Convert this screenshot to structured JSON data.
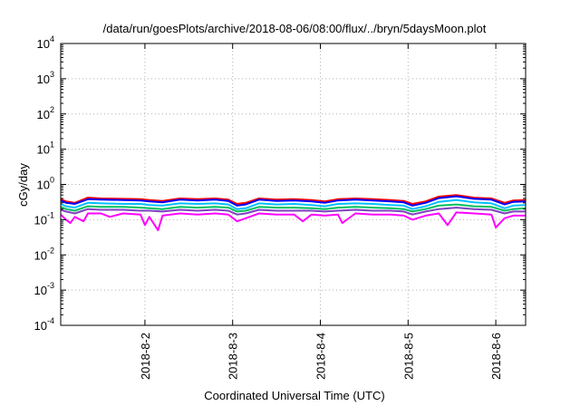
{
  "chart_data": {
    "type": "line",
    "title": "/data/run/goesPlots/archive/2018-08-06/08:00/flux/../bryn/5daysMoon.plot",
    "xlabel": "Coordinated Universal Time (UTC)",
    "ylabel": "cGy/day",
    "yscale": "log",
    "ylim": [
      0.0001,
      10000
    ],
    "xlim_days": [
      1.04,
      6.34
    ],
    "grid": true,
    "legend": "none",
    "y_ticks": [
      {
        "base": "10",
        "exp": "-4",
        "value": 0.0001
      },
      {
        "base": "10",
        "exp": "-3",
        "value": 0.001
      },
      {
        "base": "10",
        "exp": "-2",
        "value": 0.01
      },
      {
        "base": "10",
        "exp": "-1",
        "value": 0.1
      },
      {
        "base": "10",
        "exp": "0",
        "value": 1
      },
      {
        "base": "10",
        "exp": "1",
        "value": 10
      },
      {
        "base": "10",
        "exp": "2",
        "value": 100
      },
      {
        "base": "10",
        "exp": "3",
        "value": 1000
      },
      {
        "base": "10",
        "exp": "4",
        "value": 10000
      }
    ],
    "x_ticks": [
      {
        "label": "2018-8-2",
        "day": 2
      },
      {
        "label": "2018-8-3",
        "day": 3
      },
      {
        "label": "2018-8-4",
        "day": 4
      },
      {
        "label": "2018-8-5",
        "day": 5
      },
      {
        "label": "2018-8-6",
        "day": 6
      }
    ],
    "series": [
      {
        "color": "#ff0000",
        "points": [
          [
            1.04,
            0.38
          ],
          [
            1.1,
            0.33
          ],
          [
            1.2,
            0.3
          ],
          [
            1.35,
            0.42
          ],
          [
            1.5,
            0.4
          ],
          [
            1.75,
            0.39
          ],
          [
            1.95,
            0.38
          ],
          [
            2.05,
            0.36
          ],
          [
            2.2,
            0.34
          ],
          [
            2.4,
            0.4
          ],
          [
            2.6,
            0.38
          ],
          [
            2.8,
            0.4
          ],
          [
            2.95,
            0.37
          ],
          [
            3.05,
            0.28
          ],
          [
            3.15,
            0.3
          ],
          [
            3.3,
            0.4
          ],
          [
            3.5,
            0.37
          ],
          [
            3.7,
            0.38
          ],
          [
            3.9,
            0.36
          ],
          [
            4.05,
            0.33
          ],
          [
            4.2,
            0.38
          ],
          [
            4.4,
            0.4
          ],
          [
            4.6,
            0.38
          ],
          [
            4.8,
            0.36
          ],
          [
            4.95,
            0.34
          ],
          [
            5.05,
            0.28
          ],
          [
            5.2,
            0.33
          ],
          [
            5.35,
            0.45
          ],
          [
            5.55,
            0.5
          ],
          [
            5.75,
            0.42
          ],
          [
            5.95,
            0.4
          ],
          [
            6.1,
            0.3
          ],
          [
            6.2,
            0.35
          ],
          [
            6.34,
            0.36
          ]
        ]
      },
      {
        "color": "#0000ff",
        "points": [
          [
            1.04,
            0.35
          ],
          [
            1.1,
            0.3
          ],
          [
            1.2,
            0.28
          ],
          [
            1.35,
            0.38
          ],
          [
            1.5,
            0.37
          ],
          [
            1.75,
            0.36
          ],
          [
            1.95,
            0.35
          ],
          [
            2.05,
            0.33
          ],
          [
            2.2,
            0.31
          ],
          [
            2.4,
            0.37
          ],
          [
            2.6,
            0.35
          ],
          [
            2.8,
            0.37
          ],
          [
            2.95,
            0.34
          ],
          [
            3.05,
            0.25
          ],
          [
            3.15,
            0.27
          ],
          [
            3.3,
            0.37
          ],
          [
            3.5,
            0.34
          ],
          [
            3.7,
            0.35
          ],
          [
            3.9,
            0.33
          ],
          [
            4.05,
            0.3
          ],
          [
            4.2,
            0.35
          ],
          [
            4.4,
            0.37
          ],
          [
            4.6,
            0.35
          ],
          [
            4.8,
            0.33
          ],
          [
            4.95,
            0.31
          ],
          [
            5.05,
            0.25
          ],
          [
            5.2,
            0.3
          ],
          [
            5.35,
            0.41
          ],
          [
            5.55,
            0.46
          ],
          [
            5.75,
            0.39
          ],
          [
            5.95,
            0.37
          ],
          [
            6.1,
            0.27
          ],
          [
            6.2,
            0.32
          ],
          [
            6.34,
            0.33
          ]
        ]
      },
      {
        "color": "#00c0ff",
        "points": [
          [
            1.04,
            0.28
          ],
          [
            1.1,
            0.24
          ],
          [
            1.2,
            0.22
          ],
          [
            1.35,
            0.3
          ],
          [
            1.5,
            0.29
          ],
          [
            1.75,
            0.28
          ],
          [
            1.95,
            0.28
          ],
          [
            2.05,
            0.26
          ],
          [
            2.2,
            0.25
          ],
          [
            2.4,
            0.29
          ],
          [
            2.6,
            0.28
          ],
          [
            2.8,
            0.29
          ],
          [
            2.95,
            0.27
          ],
          [
            3.05,
            0.2
          ],
          [
            3.15,
            0.21
          ],
          [
            3.3,
            0.29
          ],
          [
            3.5,
            0.27
          ],
          [
            3.7,
            0.28
          ],
          [
            3.9,
            0.26
          ],
          [
            4.05,
            0.24
          ],
          [
            4.2,
            0.28
          ],
          [
            4.4,
            0.29
          ],
          [
            4.6,
            0.28
          ],
          [
            4.8,
            0.26
          ],
          [
            4.95,
            0.25
          ],
          [
            5.05,
            0.2
          ],
          [
            5.2,
            0.24
          ],
          [
            5.35,
            0.32
          ],
          [
            5.55,
            0.36
          ],
          [
            5.75,
            0.31
          ],
          [
            5.95,
            0.29
          ],
          [
            6.1,
            0.21
          ],
          [
            6.2,
            0.25
          ],
          [
            6.34,
            0.26
          ]
        ]
      },
      {
        "color": "#00c060",
        "points": [
          [
            1.04,
            0.23
          ],
          [
            1.1,
            0.2
          ],
          [
            1.2,
            0.18
          ],
          [
            1.35,
            0.24
          ],
          [
            1.5,
            0.23
          ],
          [
            1.75,
            0.23
          ],
          [
            1.95,
            0.22
          ],
          [
            2.05,
            0.21
          ],
          [
            2.2,
            0.2
          ],
          [
            2.4,
            0.23
          ],
          [
            2.6,
            0.22
          ],
          [
            2.8,
            0.23
          ],
          [
            2.95,
            0.22
          ],
          [
            3.05,
            0.17
          ],
          [
            3.15,
            0.18
          ],
          [
            3.3,
            0.23
          ],
          [
            3.5,
            0.22
          ],
          [
            3.7,
            0.22
          ],
          [
            3.9,
            0.21
          ],
          [
            4.05,
            0.2
          ],
          [
            4.2,
            0.22
          ],
          [
            4.4,
            0.23
          ],
          [
            4.6,
            0.22
          ],
          [
            4.8,
            0.21
          ],
          [
            4.95,
            0.2
          ],
          [
            5.05,
            0.17
          ],
          [
            5.2,
            0.2
          ],
          [
            5.35,
            0.25
          ],
          [
            5.55,
            0.27
          ],
          [
            5.75,
            0.24
          ],
          [
            5.95,
            0.23
          ],
          [
            6.1,
            0.18
          ],
          [
            6.2,
            0.2
          ],
          [
            6.34,
            0.21
          ]
        ]
      },
      {
        "color": "#8040c0",
        "points": [
          [
            1.04,
            0.19
          ],
          [
            1.1,
            0.17
          ],
          [
            1.2,
            0.15
          ],
          [
            1.35,
            0.2
          ],
          [
            1.5,
            0.19
          ],
          [
            1.75,
            0.19
          ],
          [
            1.95,
            0.18
          ],
          [
            2.05,
            0.18
          ],
          [
            2.2,
            0.17
          ],
          [
            2.4,
            0.19
          ],
          [
            2.6,
            0.18
          ],
          [
            2.8,
            0.19
          ],
          [
            2.95,
            0.18
          ],
          [
            3.05,
            0.14
          ],
          [
            3.15,
            0.15
          ],
          [
            3.3,
            0.19
          ],
          [
            3.5,
            0.18
          ],
          [
            3.7,
            0.18
          ],
          [
            3.9,
            0.18
          ],
          [
            4.05,
            0.17
          ],
          [
            4.2,
            0.18
          ],
          [
            4.4,
            0.19
          ],
          [
            4.6,
            0.18
          ],
          [
            4.8,
            0.18
          ],
          [
            4.95,
            0.17
          ],
          [
            5.05,
            0.14
          ],
          [
            5.2,
            0.17
          ],
          [
            5.35,
            0.2
          ],
          [
            5.55,
            0.22
          ],
          [
            5.75,
            0.2
          ],
          [
            5.95,
            0.19
          ],
          [
            6.1,
            0.15
          ],
          [
            6.2,
            0.17
          ],
          [
            6.34,
            0.17
          ]
        ]
      },
      {
        "color": "#ff00ff",
        "points": [
          [
            1.04,
            0.14
          ],
          [
            1.1,
            0.1
          ],
          [
            1.15,
            0.08
          ],
          [
            1.2,
            0.12
          ],
          [
            1.3,
            0.09
          ],
          [
            1.35,
            0.15
          ],
          [
            1.5,
            0.15
          ],
          [
            1.6,
            0.12
          ],
          [
            1.75,
            0.15
          ],
          [
            1.95,
            0.14
          ],
          [
            2.0,
            0.07
          ],
          [
            2.05,
            0.12
          ],
          [
            2.15,
            0.05
          ],
          [
            2.2,
            0.13
          ],
          [
            2.4,
            0.15
          ],
          [
            2.6,
            0.14
          ],
          [
            2.8,
            0.15
          ],
          [
            2.95,
            0.14
          ],
          [
            3.05,
            0.09
          ],
          [
            3.15,
            0.11
          ],
          [
            3.3,
            0.15
          ],
          [
            3.5,
            0.14
          ],
          [
            3.7,
            0.14
          ],
          [
            3.8,
            0.09
          ],
          [
            3.9,
            0.14
          ],
          [
            4.05,
            0.13
          ],
          [
            4.2,
            0.14
          ],
          [
            4.25,
            0.08
          ],
          [
            4.4,
            0.15
          ],
          [
            4.6,
            0.14
          ],
          [
            4.8,
            0.14
          ],
          [
            4.95,
            0.13
          ],
          [
            5.05,
            0.1
          ],
          [
            5.2,
            0.13
          ],
          [
            5.35,
            0.15
          ],
          [
            5.45,
            0.07
          ],
          [
            5.55,
            0.16
          ],
          [
            5.75,
            0.15
          ],
          [
            5.95,
            0.14
          ],
          [
            6.0,
            0.06
          ],
          [
            6.1,
            0.11
          ],
          [
            6.2,
            0.13
          ],
          [
            6.34,
            0.13
          ]
        ]
      }
    ]
  }
}
